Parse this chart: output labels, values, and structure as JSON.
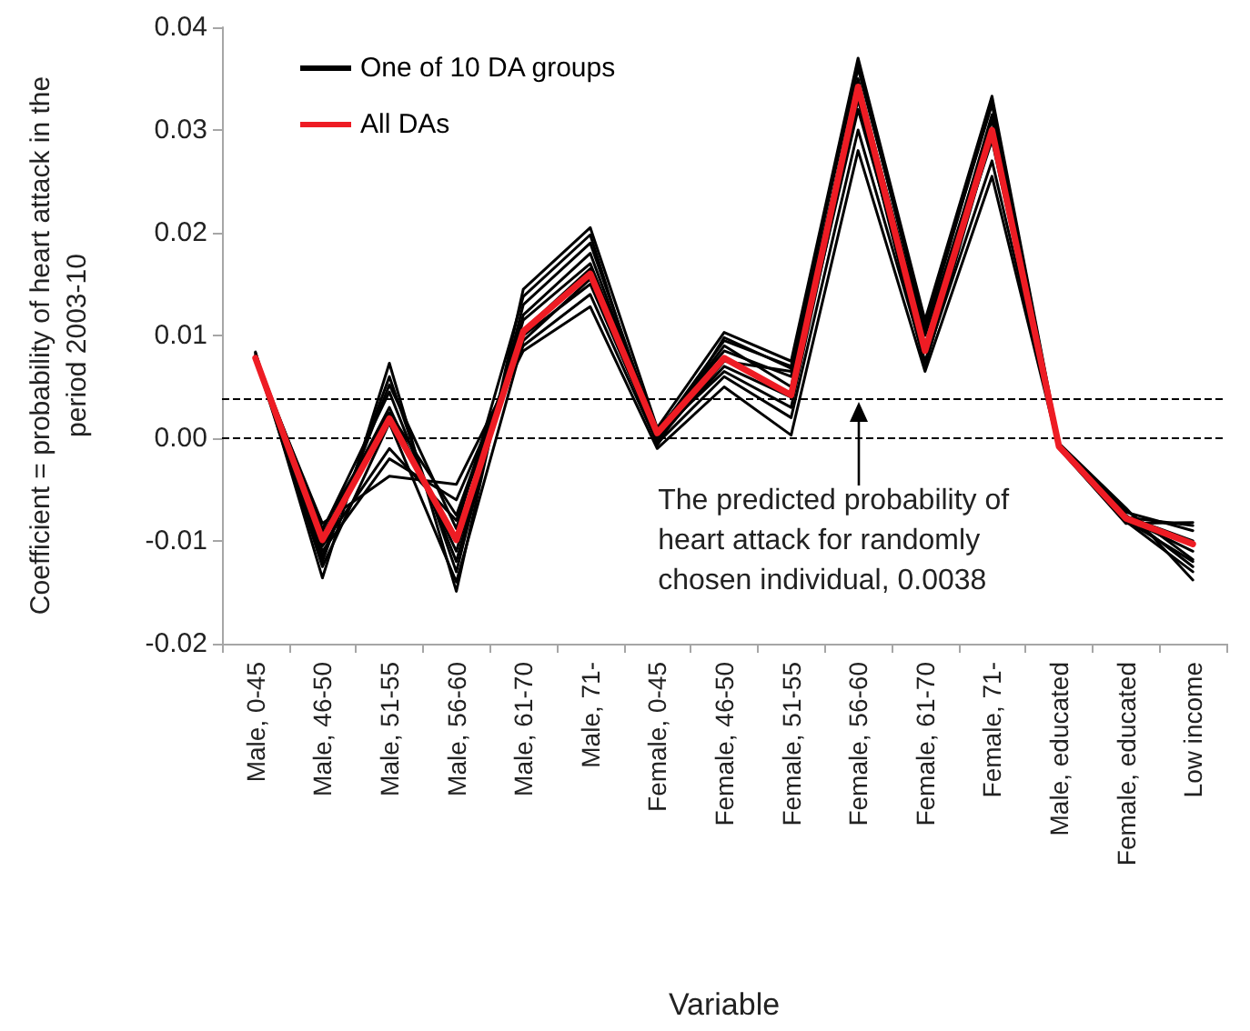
{
  "chart_data": {
    "type": "line",
    "xlabel": "Variable",
    "ylabel": "Coefficient = probability of heart attack in the period 2003-10",
    "categories": [
      "Male, 0-45",
      "Male, 46-50",
      "Male, 51-55",
      "Male, 56-60",
      "Male, 61-70",
      "Male, 71-",
      "Female, 0-45",
      "Female, 46-50",
      "Female, 51-55",
      "Female, 56-60",
      "Female, 61-70",
      "Female, 71-",
      "Male, educated",
      "Female, educated",
      "Low income"
    ],
    "series": [
      {
        "name": "One of 10 DA groups",
        "color": "#000000",
        "values": [
          0.0084,
          -0.0136,
          0.0073,
          -0.0149,
          0.0145,
          0.0205,
          0.001,
          0.0103,
          0.0075,
          0.037,
          0.0115,
          0.0333,
          -0.0005,
          -0.0068,
          -0.0138
        ]
      },
      {
        "color": "#000000",
        "values": [
          0.0076,
          -0.0083,
          -0.0037,
          -0.0045,
          0.0085,
          0.0128,
          -0.001,
          0.005,
          0.0003,
          0.028,
          0.0065,
          0.0255,
          -0.001,
          -0.0083,
          -0.0082
        ]
      },
      {
        "color": "#000000",
        "values": [
          0.008,
          -0.012,
          0.006,
          -0.013,
          0.013,
          0.019,
          0.0005,
          0.0095,
          0.007,
          0.036,
          0.011,
          0.0325,
          -0.0008,
          -0.0075,
          -0.0125
        ]
      },
      {
        "color": "#000000",
        "values": [
          0.0078,
          -0.0105,
          -0.001,
          -0.008,
          0.01,
          0.015,
          0.0,
          0.007,
          0.004,
          0.032,
          0.009,
          0.029,
          -0.0008,
          -0.0078,
          -0.011
        ]
      },
      {
        "color": "#000000",
        "values": [
          0.0081,
          -0.0095,
          0.003,
          -0.011,
          0.0115,
          0.017,
          0.0008,
          0.0085,
          0.006,
          0.0345,
          0.01,
          0.031,
          -0.0007,
          -0.0072,
          -0.009
        ]
      },
      {
        "color": "#000000",
        "values": [
          0.0077,
          -0.011,
          -0.002,
          -0.006,
          0.009,
          0.014,
          -0.0005,
          0.006,
          0.002,
          0.03,
          0.0075,
          0.027,
          -0.0009,
          -0.008,
          -0.012
        ]
      },
      {
        "color": "#000000",
        "values": [
          0.0079,
          -0.009,
          0.0045,
          -0.012,
          0.012,
          0.018,
          0.0003,
          0.009,
          0.005,
          0.035,
          0.0085,
          0.03,
          -0.0008,
          -0.0076,
          -0.01
        ]
      },
      {
        "color": "#000000",
        "values": [
          0.0083,
          -0.0115,
          0.0052,
          -0.0088,
          0.0138,
          0.0198,
          -0.0007,
          0.0098,
          0.0068,
          0.0365,
          0.0105,
          0.0328,
          -0.0006,
          -0.007,
          -0.0118
        ]
      },
      {
        "color": "#000000",
        "values": [
          0.0078,
          -0.0125,
          0.0015,
          -0.014,
          0.0095,
          0.0155,
          -0.0003,
          0.0075,
          0.0065,
          0.034,
          0.009,
          0.0315,
          -0.0009,
          -0.0081,
          -0.013
        ]
      },
      {
        "color": "#000000",
        "values": [
          0.008,
          -0.0088,
          0.0025,
          -0.0075,
          0.0105,
          0.0165,
          0.0004,
          0.0065,
          0.003,
          0.033,
          0.007,
          0.0295,
          -0.0008,
          -0.0077,
          -0.0085
        ]
      },
      {
        "name": "All DAs",
        "color": "#ee1c24",
        "values": [
          0.0078,
          -0.0099,
          0.0019,
          -0.0099,
          0.0104,
          0.016,
          0.0005,
          0.0078,
          0.0042,
          0.0342,
          0.0085,
          0.03,
          -0.0008,
          -0.0078,
          -0.0103
        ]
      }
    ],
    "ylim": [
      -0.02,
      0.04
    ],
    "yticks": [
      {
        "value": -0.02,
        "label": "-0.02"
      },
      {
        "value": -0.01,
        "label": "-0.01"
      },
      {
        "value": 0,
        "label": "0.00"
      },
      {
        "value": 0.01,
        "label": "0.01"
      },
      {
        "value": 0.02,
        "label": "0.02"
      },
      {
        "value": 0.03,
        "label": "0.03"
      },
      {
        "value": 0.04,
        "label": "0.04"
      }
    ],
    "ref_lines": [
      {
        "axis": "y",
        "value": 0,
        "color": "#000000",
        "line_style": "dashed"
      },
      {
        "axis": "y",
        "value": 0.0038,
        "color": "#000000",
        "line_style": "dashed"
      }
    ],
    "annotations": [
      {
        "text": "The predicted probability of heart attack for randomly chosen individual, 0.0038",
        "x": "Female, 56-60",
        "y": 0.0038
      }
    ],
    "grid": false,
    "legend": "top left",
    "marker": "none",
    "line_style": "solid"
  }
}
